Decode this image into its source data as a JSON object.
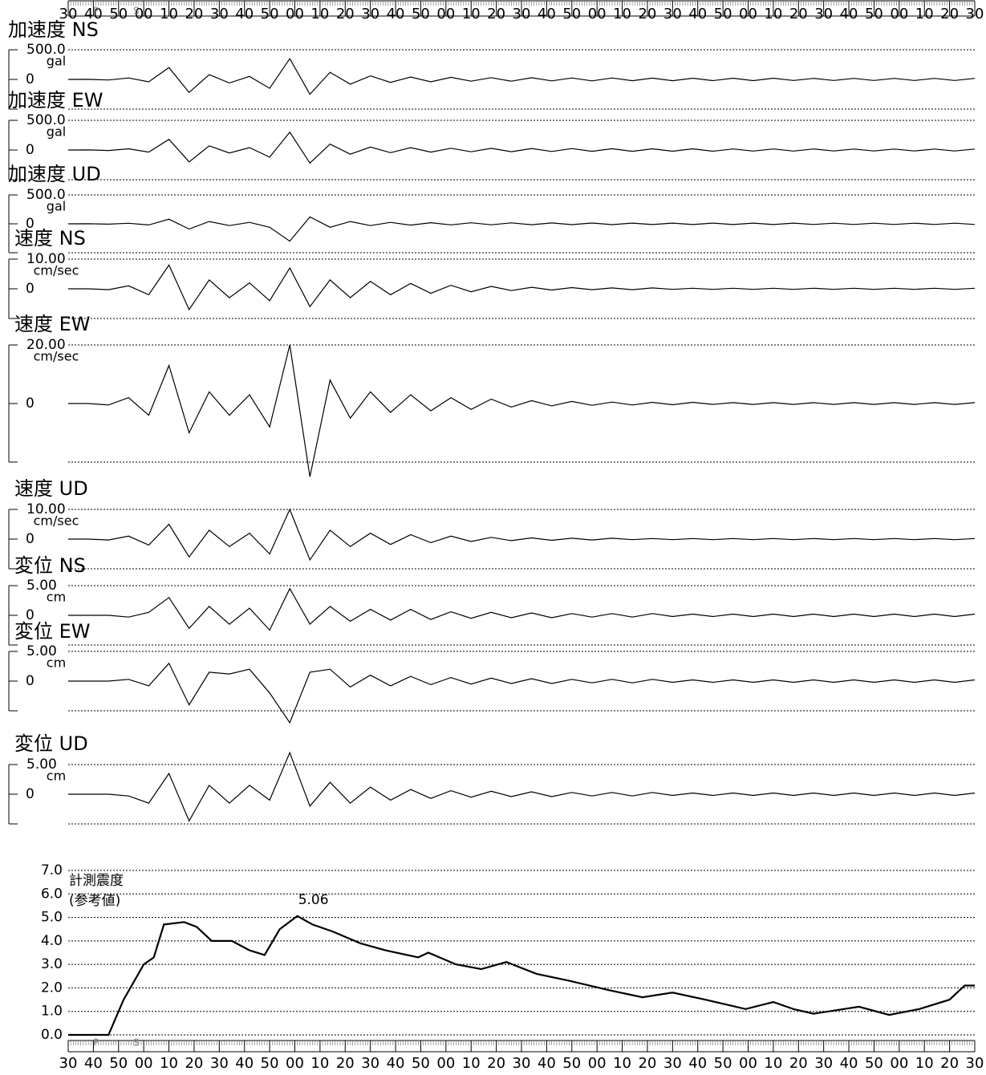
{
  "chart_data": [
    {
      "type": "line",
      "title": "加速度 NS",
      "unit": "gal",
      "color": "#000000",
      "xlim": [
        0,
        360
      ],
      "ylim": [
        -500,
        500
      ],
      "yticks": [
        {
          "value": 500,
          "label": "500.0"
        },
        0
      ],
      "x": [
        0,
        8,
        16,
        24,
        32,
        40,
        48,
        56,
        64,
        72,
        80,
        88,
        96,
        104,
        112,
        120,
        128,
        136,
        144,
        152,
        160,
        168,
        176,
        184,
        192,
        200,
        208,
        216,
        224,
        232,
        240,
        248,
        256,
        264,
        272,
        280,
        288,
        296,
        304,
        312,
        320,
        328,
        336,
        344,
        352,
        360
      ],
      "values": [
        0,
        2,
        -10,
        25,
        -40,
        200,
        -220,
        80,
        -60,
        50,
        -150,
        350,
        -250,
        120,
        -80,
        60,
        -50,
        40,
        -40,
        35,
        -30,
        30,
        -30,
        28,
        -25,
        25,
        -25,
        24,
        -22,
        22,
        -22,
        20,
        -20,
        20,
        -20,
        20,
        -18,
        18,
        -18,
        18,
        -18,
        18,
        -18,
        18,
        -18,
        18
      ]
    },
    {
      "type": "line",
      "title": "加速度 EW",
      "unit": "gal",
      "color": "#000000",
      "xlim": [
        0,
        360
      ],
      "ylim": [
        -500,
        500
      ],
      "yticks": [
        {
          "value": 500,
          "label": "500.0"
        },
        0
      ],
      "x": [
        0,
        8,
        16,
        24,
        32,
        40,
        48,
        56,
        64,
        72,
        80,
        88,
        96,
        104,
        112,
        120,
        128,
        136,
        144,
        152,
        160,
        168,
        176,
        184,
        192,
        200,
        208,
        216,
        224,
        232,
        240,
        248,
        256,
        264,
        272,
        280,
        288,
        296,
        304,
        312,
        320,
        328,
        336,
        344,
        352,
        360
      ],
      "values": [
        0,
        2,
        -8,
        20,
        -35,
        180,
        -200,
        70,
        -50,
        40,
        -120,
        300,
        -220,
        100,
        -70,
        50,
        -45,
        40,
        -35,
        30,
        -30,
        28,
        -28,
        26,
        -25,
        24,
        -22,
        22,
        -22,
        20,
        -20,
        20,
        -20,
        18,
        -18,
        18,
        -18,
        18,
        -16,
        16,
        -16,
        16,
        -16,
        16,
        -16,
        16
      ]
    },
    {
      "type": "line",
      "title": "加速度 UD",
      "unit": "gal",
      "color": "#000000",
      "xlim": [
        0,
        360
      ],
      "ylim": [
        -500,
        500
      ],
      "yticks": [
        {
          "value": 500,
          "label": "500.0"
        },
        0
      ],
      "x": [
        0,
        8,
        16,
        24,
        32,
        40,
        48,
        56,
        64,
        72,
        80,
        88,
        96,
        104,
        112,
        120,
        128,
        136,
        144,
        152,
        160,
        168,
        176,
        184,
        192,
        200,
        208,
        216,
        224,
        232,
        240,
        248,
        256,
        264,
        272,
        280,
        288,
        296,
        304,
        312,
        320,
        328,
        336,
        344,
        352,
        360
      ],
      "values": [
        0,
        1,
        -5,
        10,
        -20,
        80,
        -90,
        40,
        -30,
        25,
        -60,
        -300,
        120,
        -60,
        40,
        -30,
        25,
        -22,
        20,
        -18,
        18,
        -16,
        16,
        -15,
        15,
        -14,
        14,
        -14,
        13,
        -13,
        13,
        -12,
        12,
        -12,
        12,
        -12,
        12,
        -11,
        11,
        -11,
        11,
        -11,
        11,
        -11,
        11,
        -11
      ]
    },
    {
      "type": "line",
      "title": "速度 NS",
      "unit": "cm/sec",
      "color": "#000000",
      "xlim": [
        0,
        360
      ],
      "ylim": [
        -10,
        10
      ],
      "yticks": [
        {
          "value": 10,
          "label": "10.00"
        },
        0
      ],
      "x": [
        0,
        8,
        16,
        24,
        32,
        40,
        48,
        56,
        64,
        72,
        80,
        88,
        96,
        104,
        112,
        120,
        128,
        136,
        144,
        152,
        160,
        168,
        176,
        184,
        192,
        200,
        208,
        216,
        224,
        232,
        240,
        248,
        256,
        264,
        272,
        280,
        288,
        296,
        304,
        312,
        320,
        328,
        336,
        344,
        352,
        360
      ],
      "values": [
        0,
        0,
        -0.3,
        1,
        -2,
        8,
        -7,
        3,
        -3,
        2,
        -4,
        7,
        -6,
        3,
        -3,
        2.5,
        -2,
        1.8,
        -1.5,
        1.2,
        -1,
        0.8,
        -0.6,
        0.5,
        -0.4,
        0.4,
        -0.3,
        0.3,
        -0.3,
        0.3,
        -0.2,
        0.2,
        -0.2,
        0.2,
        -0.2,
        0.2,
        -0.2,
        0.2,
        -0.2,
        0.2,
        -0.2,
        0.2,
        -0.2,
        0.2,
        -0.2,
        0.2
      ]
    },
    {
      "type": "line",
      "title": "速度 EW",
      "unit": "cm/sec",
      "color": "#000000",
      "xlim": [
        0,
        360
      ],
      "ylim": [
        -20,
        20
      ],
      "yticks": [
        {
          "value": 20,
          "label": "20.00"
        },
        0
      ],
      "x": [
        0,
        8,
        16,
        24,
        32,
        40,
        48,
        56,
        64,
        72,
        80,
        88,
        96,
        104,
        112,
        120,
        128,
        136,
        144,
        152,
        160,
        168,
        176,
        184,
        192,
        200,
        208,
        216,
        224,
        232,
        240,
        248,
        256,
        264,
        272,
        280,
        288,
        296,
        304,
        312,
        320,
        328,
        336,
        344,
        352,
        360
      ],
      "values": [
        0,
        0,
        -0.5,
        2,
        -4,
        13,
        -10,
        4,
        -4,
        3,
        -8,
        20,
        -25,
        8,
        -5,
        4,
        -3,
        3,
        -2.5,
        2,
        -2,
        1.5,
        -1.2,
        1,
        -0.8,
        0.7,
        -0.6,
        0.5,
        -0.5,
        0.4,
        -0.4,
        0.4,
        -0.3,
        0.3,
        -0.3,
        0.3,
        -0.3,
        0.3,
        -0.3,
        0.3,
        -0.3,
        0.3,
        -0.3,
        0.3,
        -0.3,
        0.3
      ]
    },
    {
      "type": "line",
      "title": "速度 UD",
      "unit": "cm/sec",
      "color": "#000000",
      "xlim": [
        0,
        360
      ],
      "ylim": [
        -10,
        10
      ],
      "yticks": [
        {
          "value": 10,
          "label": "10.00"
        },
        0
      ],
      "x": [
        0,
        8,
        16,
        24,
        32,
        40,
        48,
        56,
        64,
        72,
        80,
        88,
        96,
        104,
        112,
        120,
        128,
        136,
        144,
        152,
        160,
        168,
        176,
        184,
        192,
        200,
        208,
        216,
        224,
        232,
        240,
        248,
        256,
        264,
        272,
        280,
        288,
        296,
        304,
        312,
        320,
        328,
        336,
        344,
        352,
        360
      ],
      "values": [
        0,
        0,
        -0.3,
        1,
        -2,
        5,
        -6,
        3,
        -2.5,
        2,
        -5,
        10,
        -7,
        3,
        -2.5,
        2,
        -1.8,
        1.5,
        -1.2,
        1,
        -0.8,
        0.6,
        -0.5,
        0.4,
        -0.4,
        0.3,
        -0.3,
        0.3,
        -0.2,
        0.2,
        -0.2,
        0.2,
        -0.2,
        0.2,
        -0.2,
        0.2,
        -0.2,
        0.2,
        -0.2,
        0.2,
        -0.2,
        0.2,
        -0.2,
        0.2,
        -0.2,
        0.2
      ]
    },
    {
      "type": "line",
      "title": "変位 NS",
      "unit": "cm",
      "color": "#000000",
      "xlim": [
        0,
        360
      ],
      "ylim": [
        -5,
        5
      ],
      "yticks": [
        {
          "value": 5,
          "label": "5.00"
        },
        0
      ],
      "x": [
        0,
        8,
        16,
        24,
        32,
        40,
        48,
        56,
        64,
        72,
        80,
        88,
        96,
        104,
        112,
        120,
        128,
        136,
        144,
        152,
        160,
        168,
        176,
        184,
        192,
        200,
        208,
        216,
        224,
        232,
        240,
        248,
        256,
        264,
        272,
        280,
        288,
        296,
        304,
        312,
        320,
        328,
        336,
        344,
        352,
        360
      ],
      "values": [
        0,
        0,
        0,
        -0.3,
        0.5,
        3,
        -2.2,
        1.5,
        -1.5,
        1.2,
        -2.5,
        4.5,
        -1.5,
        1.5,
        -1,
        1,
        -0.8,
        1,
        -0.7,
        0.6,
        -0.5,
        0.5,
        -0.4,
        0.4,
        -0.4,
        0.3,
        -0.3,
        0.3,
        -0.3,
        0.3,
        -0.2,
        0.2,
        -0.2,
        0.2,
        -0.2,
        0.2,
        -0.2,
        0.2,
        -0.2,
        0.2,
        -0.2,
        0.2,
        -0.2,
        0.2,
        -0.2,
        0.2
      ]
    },
    {
      "type": "line",
      "title": "変位 EW",
      "unit": "cm",
      "color": "#000000",
      "xlim": [
        0,
        360
      ],
      "ylim": [
        -5,
        5
      ],
      "yticks": [
        {
          "value": 5,
          "label": "5.00"
        },
        0
      ],
      "x": [
        0,
        8,
        16,
        24,
        32,
        40,
        48,
        56,
        64,
        72,
        80,
        88,
        96,
        104,
        112,
        120,
        128,
        136,
        144,
        152,
        160,
        168,
        176,
        184,
        192,
        200,
        208,
        216,
        224,
        232,
        240,
        248,
        256,
        264,
        272,
        280,
        288,
        296,
        304,
        312,
        320,
        328,
        336,
        344,
        352,
        360
      ],
      "values": [
        0,
        0,
        0,
        0.3,
        -0.8,
        3,
        -4,
        1.5,
        1.2,
        2,
        -2,
        -7,
        1.5,
        2,
        -1,
        1,
        -0.8,
        0.8,
        -0.6,
        0.6,
        -0.5,
        0.5,
        -0.4,
        0.4,
        -0.4,
        0.3,
        -0.3,
        0.3,
        -0.3,
        0.3,
        -0.2,
        0.2,
        -0.2,
        0.2,
        -0.2,
        0.2,
        -0.2,
        0.2,
        -0.2,
        0.2,
        -0.2,
        0.2,
        -0.2,
        0.2,
        -0.2,
        0.2
      ]
    },
    {
      "type": "line",
      "title": "変位 UD",
      "unit": "cm",
      "color": "#000000",
      "xlim": [
        0,
        360
      ],
      "ylim": [
        -5,
        5
      ],
      "yticks": [
        {
          "value": 5,
          "label": "5.00"
        },
        0
      ],
      "x": [
        0,
        8,
        16,
        24,
        32,
        40,
        48,
        56,
        64,
        72,
        80,
        88,
        96,
        104,
        112,
        120,
        128,
        136,
        144,
        152,
        160,
        168,
        176,
        184,
        192,
        200,
        208,
        216,
        224,
        232,
        240,
        248,
        256,
        264,
        272,
        280,
        288,
        296,
        304,
        312,
        320,
        328,
        336,
        344,
        352,
        360
      ],
      "values": [
        0,
        0,
        0,
        -0.3,
        -1.5,
        3.5,
        -4.5,
        1.5,
        -1.5,
        1.5,
        -1,
        7,
        -2,
        2,
        -1.5,
        1.2,
        -1,
        0.8,
        -0.7,
        0.6,
        -0.5,
        0.5,
        -0.4,
        0.4,
        -0.4,
        0.3,
        -0.3,
        0.3,
        -0.3,
        0.3,
        -0.2,
        0.2,
        -0.2,
        0.2,
        -0.2,
        0.2,
        -0.2,
        0.2,
        -0.2,
        0.2,
        -0.2,
        0.2,
        -0.2,
        0.2,
        -0.2,
        0.2
      ]
    },
    {
      "type": "intensity",
      "title": "計測震度",
      "subtitle": "(参考値)",
      "color": "#000000",
      "grid": true,
      "xlim": [
        0,
        360
      ],
      "ylim": [
        0,
        7
      ],
      "yticks": [
        {
          "value": 0,
          "label": "0.0"
        },
        {
          "value": 1,
          "label": "1.0"
        },
        {
          "value": 2,
          "label": "2.0"
        },
        {
          "value": 3,
          "label": "3.0"
        },
        {
          "value": 4,
          "label": "4.0"
        },
        {
          "value": 5,
          "label": "5.0"
        },
        {
          "value": 6,
          "label": "6.0"
        },
        {
          "value": 7,
          "label": "7.0"
        }
      ],
      "xticks": [
        {
          "value": 0,
          "label": "30"
        },
        {
          "value": 10,
          "label": "40"
        },
        {
          "value": 20,
          "label": "50"
        },
        {
          "value": 30,
          "label": "00"
        },
        {
          "value": 40,
          "label": "10"
        },
        {
          "value": 50,
          "label": "20"
        },
        {
          "value": 60,
          "label": "30"
        },
        {
          "value": 70,
          "label": "40"
        },
        {
          "value": 80,
          "label": "50"
        },
        {
          "value": 90,
          "label": "00"
        },
        {
          "value": 100,
          "label": "10"
        },
        {
          "value": 110,
          "label": "20"
        },
        {
          "value": 120,
          "label": "30"
        },
        {
          "value": 130,
          "label": "40"
        },
        {
          "value": 140,
          "label": "50"
        },
        {
          "value": 150,
          "label": "00"
        },
        {
          "value": 160,
          "label": "10"
        },
        {
          "value": 170,
          "label": "20"
        },
        {
          "value": 180,
          "label": "30"
        },
        {
          "value": 190,
          "label": "40"
        },
        {
          "value": 200,
          "label": "50"
        },
        {
          "value": 210,
          "label": "00"
        },
        {
          "value": 220,
          "label": "10"
        },
        {
          "value": 230,
          "label": "20"
        },
        {
          "value": 240,
          "label": "30"
        },
        {
          "value": 250,
          "label": "40"
        },
        {
          "value": 260,
          "label": "50"
        },
        {
          "value": 270,
          "label": "00"
        },
        {
          "value": 280,
          "label": "10"
        },
        {
          "value": 290,
          "label": "20"
        },
        {
          "value": 300,
          "label": "30"
        },
        {
          "value": 310,
          "label": "40"
        },
        {
          "value": 320,
          "label": "50"
        },
        {
          "value": 330,
          "label": "00"
        },
        {
          "value": 340,
          "label": "10"
        },
        {
          "value": 350,
          "label": "20"
        },
        {
          "value": 360,
          "label": "30"
        }
      ],
      "markers": [
        {
          "label": "P",
          "x": 11
        },
        {
          "label": "S",
          "x": 27
        }
      ],
      "x": [
        0,
        16,
        22,
        30,
        34,
        38,
        46,
        51,
        57,
        65,
        72,
        78,
        84,
        91,
        97,
        105,
        116,
        126,
        139,
        143,
        154,
        164,
        174,
        186,
        199,
        215,
        228,
        240,
        253,
        269,
        280,
        288,
        296,
        314,
        326,
        338,
        350,
        356,
        360
      ],
      "values": [
        0,
        0,
        1.5,
        3,
        3.3,
        4.7,
        4.8,
        4.6,
        4.0,
        4.0,
        3.6,
        3.4,
        4.5,
        5.06,
        4.7,
        4.4,
        3.9,
        3.6,
        3.3,
        3.5,
        3.0,
        2.8,
        3.1,
        2.6,
        2.3,
        1.9,
        1.6,
        1.8,
        1.5,
        1.1,
        1.4,
        1.1,
        0.9,
        1.2,
        0.85,
        1.1,
        1.5,
        2.1,
        2.1
      ],
      "annotations": [
        {
          "text": "5.06",
          "x": 91,
          "y": 5.06
        }
      ]
    }
  ]
}
